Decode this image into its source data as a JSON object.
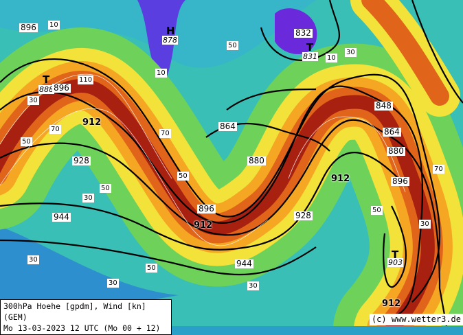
{
  "caption": {
    "line1": "300hPa Hoehe [gpdm], Wind [kn] (GEM)",
    "line2": "Mo 13-03-2023 12 UTC (Mo 00 + 12)"
  },
  "credit": "(c) www.wetter3.de",
  "colors": {
    "weak_wind": "#2aa0c8",
    "moderate": "#5cd26a",
    "strong": "#f2e23a",
    "jet": "#f08a1c",
    "jet_core": "#a82010",
    "low_core": "#6a2adc"
  },
  "pressure_systems": [
    {
      "type": "H",
      "value": "878"
    },
    {
      "type": "T",
      "value": "888"
    },
    {
      "type": "T",
      "value": "831"
    },
    {
      "type": "T",
      "value": "903"
    }
  ],
  "contour_labels": [
    "896",
    "896",
    "912",
    "928",
    "944",
    "896",
    "912",
    "864",
    "880",
    "848",
    "864",
    "880",
    "912",
    "896",
    "928",
    "944",
    "912",
    "832"
  ],
  "wind_labels": [
    "10",
    "30",
    "50",
    "70",
    "110",
    "30",
    "50",
    "30",
    "70",
    "50",
    "30",
    "50",
    "30",
    "10",
    "50",
    "30",
    "70",
    "30",
    "50",
    "10"
  ]
}
